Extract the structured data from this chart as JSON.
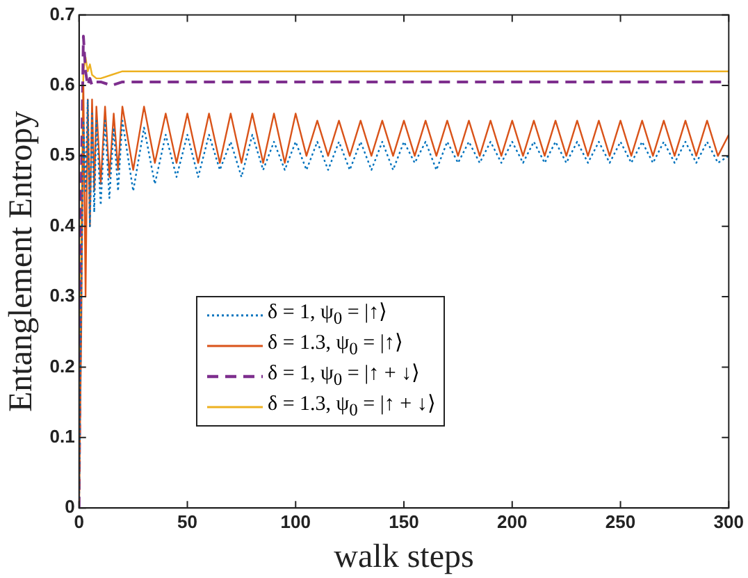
{
  "chart_data": {
    "type": "line",
    "xlabel": "walk steps",
    "ylabel": "Entanglement Entropy",
    "xlim": [
      0,
      300
    ],
    "xticks": [
      0,
      50,
      100,
      150,
      200,
      250,
      300
    ],
    "ylim": [
      0,
      0.7
    ],
    "yticks": [
      0,
      0.1,
      0.2,
      0.3,
      0.4,
      0.5,
      0.6,
      0.7
    ],
    "grid": false,
    "legend": "center",
    "marker": "none",
    "series": [
      {
        "name": "δ = 1, ψ$_{0}$ = |↑⟩",
        "color": "#0072bd",
        "line_style": "dotted",
        "x": [
          0,
          1,
          2,
          3,
          4,
          5,
          6,
          7,
          8,
          10,
          12,
          14,
          16,
          18,
          20,
          25,
          30,
          35,
          40,
          45,
          50,
          55,
          60,
          65,
          70,
          75,
          80,
          85,
          90,
          95,
          100,
          105,
          110,
          115,
          120,
          125,
          130,
          135,
          140,
          145,
          150,
          155,
          160,
          165,
          170,
          175,
          180,
          185,
          190,
          195,
          200,
          205,
          210,
          215,
          220,
          225,
          230,
          235,
          240,
          245,
          250,
          255,
          260,
          265,
          270,
          275,
          280,
          285,
          290,
          295,
          300
        ],
        "values": [
          0,
          0.3,
          0.55,
          0.45,
          0.58,
          0.4,
          0.56,
          0.42,
          0.55,
          0.43,
          0.55,
          0.44,
          0.54,
          0.45,
          0.55,
          0.45,
          0.54,
          0.46,
          0.53,
          0.47,
          0.53,
          0.47,
          0.53,
          0.48,
          0.52,
          0.47,
          0.53,
          0.48,
          0.52,
          0.48,
          0.52,
          0.48,
          0.52,
          0.48,
          0.52,
          0.48,
          0.52,
          0.48,
          0.52,
          0.48,
          0.52,
          0.49,
          0.52,
          0.48,
          0.52,
          0.49,
          0.52,
          0.49,
          0.52,
          0.49,
          0.52,
          0.49,
          0.52,
          0.49,
          0.52,
          0.49,
          0.52,
          0.49,
          0.52,
          0.49,
          0.52,
          0.49,
          0.52,
          0.49,
          0.52,
          0.49,
          0.52,
          0.49,
          0.52,
          0.49,
          0.5
        ]
      },
      {
        "name": "δ = 1.3, ψ$_{0}$ = |↑⟩",
        "color": "#d95319",
        "line_style": "solid",
        "x": [
          0,
          1,
          2,
          3,
          4,
          5,
          6,
          7,
          8,
          10,
          12,
          14,
          16,
          18,
          20,
          25,
          30,
          35,
          40,
          45,
          50,
          55,
          60,
          65,
          70,
          75,
          80,
          85,
          90,
          95,
          100,
          105,
          110,
          115,
          120,
          125,
          130,
          135,
          140,
          145,
          150,
          155,
          160,
          165,
          170,
          175,
          180,
          185,
          190,
          195,
          200,
          205,
          210,
          215,
          220,
          225,
          230,
          235,
          240,
          245,
          250,
          255,
          260,
          265,
          270,
          275,
          280,
          285,
          290,
          295,
          300
        ],
        "values": [
          0,
          0.25,
          0.6,
          0.3,
          0.58,
          0.4,
          0.58,
          0.45,
          0.57,
          0.46,
          0.57,
          0.47,
          0.56,
          0.48,
          0.57,
          0.48,
          0.57,
          0.49,
          0.56,
          0.49,
          0.56,
          0.49,
          0.56,
          0.49,
          0.56,
          0.49,
          0.56,
          0.49,
          0.56,
          0.49,
          0.56,
          0.5,
          0.55,
          0.5,
          0.55,
          0.5,
          0.55,
          0.5,
          0.55,
          0.5,
          0.55,
          0.5,
          0.55,
          0.5,
          0.55,
          0.5,
          0.55,
          0.5,
          0.55,
          0.5,
          0.55,
          0.5,
          0.55,
          0.5,
          0.55,
          0.5,
          0.55,
          0.5,
          0.55,
          0.5,
          0.55,
          0.5,
          0.55,
          0.5,
          0.55,
          0.5,
          0.55,
          0.5,
          0.55,
          0.5,
          0.53
        ]
      },
      {
        "name": "δ = 1, ψ$_{0}$ = |↑ + ↓⟩",
        "color": "#7e2f8e",
        "line_style": "dashed",
        "x": [
          0,
          1,
          2,
          3,
          4,
          5,
          6,
          8,
          10,
          15,
          20,
          300
        ],
        "values": [
          0,
          0.45,
          0.67,
          0.62,
          0.6,
          0.61,
          0.6,
          0.605,
          0.605,
          0.6,
          0.605,
          0.605
        ]
      },
      {
        "name": "δ = 1.3, ψ$_{0}$ = |↑ + ↓⟩",
        "color": "#edb120",
        "line_style": "solid",
        "x": [
          0,
          1,
          2,
          3,
          4,
          5,
          6,
          8,
          10,
          15,
          20,
          30,
          300
        ],
        "values": [
          0,
          0.4,
          0.62,
          0.64,
          0.62,
          0.63,
          0.615,
          0.61,
          0.61,
          0.615,
          0.62,
          0.62,
          0.62
        ]
      }
    ]
  }
}
